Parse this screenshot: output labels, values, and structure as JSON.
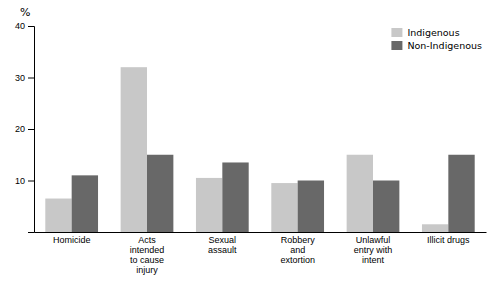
{
  "chart_data": {
    "type": "bar",
    "ylabel": "%",
    "categories": [
      "Homicide",
      "Acts\nintended\nto cause\ninjury",
      "Sexual\nassault",
      "Robbery\nand\nextortion",
      "Unlawful\nentry with\nintent",
      "Illicit drugs"
    ],
    "series": [
      {
        "name": "Indigenous",
        "color": "#c8c8c8",
        "values": [
          6.5,
          32.0,
          10.5,
          9.5,
          15.0,
          1.5
        ]
      },
      {
        "name": "Non-Indigenous",
        "color": "#686868",
        "values": [
          11.0,
          15.0,
          13.5,
          10.0,
          10.0,
          15.0
        ]
      }
    ],
    "ylim": [
      0,
      40
    ],
    "yticks": [
      10,
      20,
      30,
      40
    ],
    "grid": false,
    "legend": "upper right"
  }
}
